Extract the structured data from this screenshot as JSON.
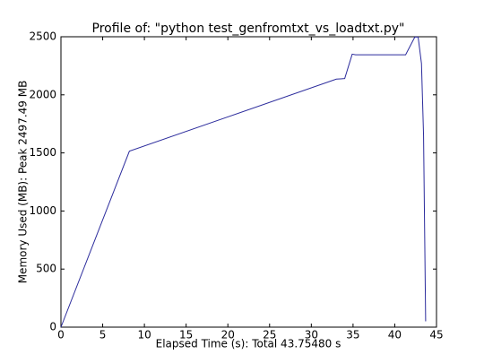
{
  "chart_data": {
    "type": "line",
    "title": "Profile of: \"python test_genfromtxt_vs_loadtxt.py\"",
    "x_label": "Elapsed Time (s): Total 43.75480 s",
    "y_label": "Memory Used (MB): Peak 2497.49 MB",
    "x": [
      0,
      8.2,
      33.0,
      34.0,
      34.9,
      35.3,
      41.3,
      42.4,
      42.8,
      43.2,
      43.45,
      43.7
    ],
    "series": [
      {
        "color": "#2b2b9c",
        "values": [
          0,
          1515,
          2135,
          2140,
          2350,
          2345,
          2345,
          2497,
          2497,
          2270,
          1650,
          50
        ]
      }
    ],
    "xlim": [
      0,
      45
    ],
    "xticks": [
      0,
      5,
      10,
      15,
      20,
      25,
      30,
      35,
      40,
      45
    ],
    "ylim": [
      0,
      2500
    ],
    "yticks": [
      0,
      500,
      1000,
      1500,
      2000,
      2500
    ]
  }
}
